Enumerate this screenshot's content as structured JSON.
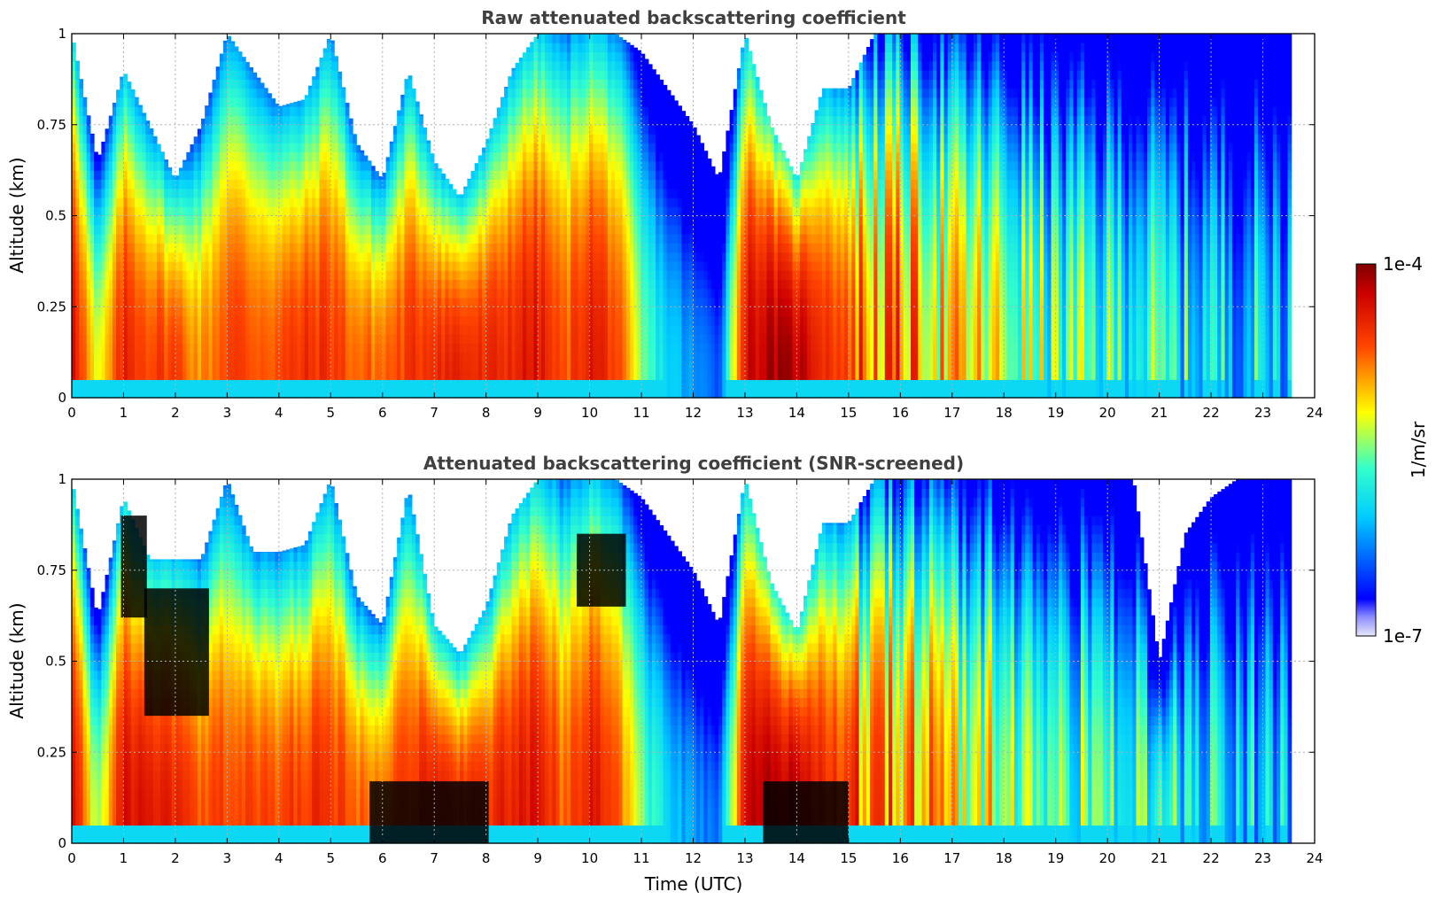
{
  "chart_data": [
    {
      "type": "heatmap",
      "title": "Raw attenuated backscattering coefficient",
      "xlabel": "",
      "ylabel": "Altitude (km)",
      "xlim": [
        0,
        24
      ],
      "ylim": [
        0,
        1
      ],
      "xticks": [
        "0",
        "1",
        "2",
        "3",
        "4",
        "5",
        "6",
        "7",
        "8",
        "9",
        "10",
        "11",
        "12",
        "13",
        "14",
        "15",
        "16",
        "17",
        "18",
        "19",
        "20",
        "21",
        "22",
        "23",
        "24"
      ],
      "yticks": [
        {
          "value": 0,
          "label": "0"
        },
        {
          "value": 0.25,
          "label": "0.25"
        },
        {
          "value": 0.5,
          "label": "0.5"
        },
        {
          "value": 0.75,
          "label": "0.75"
        },
        {
          "value": 1,
          "label": "1"
        }
      ],
      "grid": true,
      "screened": false,
      "data_end_hour": 23.55,
      "profiles": [
        {
          "t": 0.0,
          "top": 1.0,
          "peak": 0.95
        },
        {
          "t": 0.5,
          "top": 0.65,
          "peak": 0.55
        },
        {
          "t": 1.0,
          "top": 0.9,
          "peak": 0.85
        },
        {
          "t": 1.5,
          "top": 0.75,
          "peak": 0.8
        },
        {
          "t": 2.0,
          "top": 0.6,
          "peak": 0.8
        },
        {
          "t": 2.5,
          "top": 0.75,
          "peak": 0.7
        },
        {
          "t": 3.0,
          "top": 1.0,
          "peak": 0.8
        },
        {
          "t": 3.5,
          "top": 0.9,
          "peak": 0.78
        },
        {
          "t": 4.0,
          "top": 0.8,
          "peak": 0.78
        },
        {
          "t": 4.5,
          "top": 0.82,
          "peak": 0.82
        },
        {
          "t": 5.0,
          "top": 1.0,
          "peak": 0.82
        },
        {
          "t": 5.5,
          "top": 0.7,
          "peak": 0.75
        },
        {
          "t": 6.0,
          "top": 0.6,
          "peak": 0.75
        },
        {
          "t": 6.5,
          "top": 0.9,
          "peak": 0.8
        },
        {
          "t": 7.0,
          "top": 0.65,
          "peak": 0.85
        },
        {
          "t": 7.5,
          "top": 0.55,
          "peak": 0.85
        },
        {
          "t": 8.0,
          "top": 0.7,
          "peak": 0.82
        },
        {
          "t": 8.5,
          "top": 0.9,
          "peak": 0.85
        },
        {
          "t": 9.0,
          "top": 1.0,
          "peak": 0.88
        },
        {
          "t": 9.5,
          "top": 1.0,
          "peak": 0.75
        },
        {
          "t": 10.0,
          "top": 1.0,
          "peak": 0.88
        },
        {
          "t": 10.5,
          "top": 1.0,
          "peak": 0.8
        },
        {
          "t": 11.0,
          "top": 0.95,
          "peak": 0.5
        },
        {
          "t": 11.5,
          "top": 0.85,
          "peak": 0.35
        },
        {
          "t": 12.0,
          "top": 0.75,
          "peak": 0.25
        },
        {
          "t": 12.5,
          "top": 0.6,
          "peak": 0.2
        },
        {
          "t": 13.0,
          "top": 1.0,
          "peak": 0.9
        },
        {
          "t": 13.5,
          "top": 0.75,
          "peak": 0.95
        },
        {
          "t": 14.0,
          "top": 0.6,
          "peak": 0.95
        },
        {
          "t": 14.5,
          "top": 0.85,
          "peak": 0.85
        },
        {
          "t": 15.0,
          "top": 0.85,
          "peak": 0.78
        },
        {
          "t": 15.5,
          "top": 1.0,
          "peak": 0.72
        },
        {
          "t": 16.0,
          "top": 1.0,
          "peak": 0.72
        },
        {
          "t": 16.5,
          "top": 1.0,
          "peak": 0.68
        },
        {
          "t": 17.0,
          "top": 1.0,
          "peak": 0.62
        },
        {
          "t": 17.5,
          "top": 1.0,
          "peak": 0.6
        },
        {
          "t": 18.0,
          "top": 1.0,
          "peak": 0.55
        },
        {
          "t": 18.5,
          "top": 1.0,
          "peak": 0.52
        },
        {
          "t": 19.0,
          "top": 1.0,
          "peak": 0.45
        },
        {
          "t": 19.5,
          "top": 1.0,
          "peak": 0.45
        },
        {
          "t": 20.0,
          "top": 1.0,
          "peak": 0.43
        },
        {
          "t": 20.5,
          "top": 1.0,
          "peak": 0.45
        },
        {
          "t": 21.0,
          "top": 1.0,
          "peak": 0.4
        },
        {
          "t": 21.5,
          "top": 1.0,
          "peak": 0.38
        },
        {
          "t": 22.0,
          "top": 1.0,
          "peak": 0.36
        },
        {
          "t": 22.5,
          "top": 1.0,
          "peak": 0.35
        },
        {
          "t": 23.0,
          "top": 1.0,
          "peak": 0.35
        },
        {
          "t": 23.55,
          "top": 1.0,
          "peak": 0.35
        }
      ]
    },
    {
      "type": "heatmap",
      "title": "Attenuated backscattering coefficient (SNR-screened)",
      "xlabel": "Time (UTC)",
      "ylabel": "Altitude (km)",
      "xlim": [
        0,
        24
      ],
      "ylim": [
        0,
        1
      ],
      "xticks": [
        "0",
        "1",
        "2",
        "3",
        "4",
        "5",
        "6",
        "7",
        "8",
        "9",
        "10",
        "11",
        "12",
        "13",
        "14",
        "15",
        "16",
        "17",
        "18",
        "19",
        "20",
        "21",
        "22",
        "23",
        "24"
      ],
      "yticks": [
        {
          "value": 0,
          "label": "0"
        },
        {
          "value": 0.25,
          "label": "0.25"
        },
        {
          "value": 0.5,
          "label": "0.5"
        },
        {
          "value": 0.75,
          "label": "0.75"
        },
        {
          "value": 1,
          "label": "1"
        }
      ],
      "grid": true,
      "screened": true,
      "data_end_hour": 23.55,
      "profiles": [
        {
          "t": 0.0,
          "top": 1.0,
          "peak": 0.95
        },
        {
          "t": 0.5,
          "top": 0.62,
          "peak": 0.5
        },
        {
          "t": 1.0,
          "top": 0.95,
          "peak": 0.9
        },
        {
          "t": 1.5,
          "top": 0.78,
          "peak": 0.85
        },
        {
          "t": 2.0,
          "top": 0.78,
          "peak": 0.85
        },
        {
          "t": 2.5,
          "top": 0.78,
          "peak": 0.75
        },
        {
          "t": 3.0,
          "top": 1.0,
          "peak": 0.8
        },
        {
          "t": 3.5,
          "top": 0.8,
          "peak": 0.78
        },
        {
          "t": 4.0,
          "top": 0.8,
          "peak": 0.78
        },
        {
          "t": 4.5,
          "top": 0.82,
          "peak": 0.82
        },
        {
          "t": 5.0,
          "top": 1.0,
          "peak": 0.82
        },
        {
          "t": 5.5,
          "top": 0.68,
          "peak": 0.75
        },
        {
          "t": 6.0,
          "top": 0.6,
          "peak": 0.78
        },
        {
          "t": 6.5,
          "top": 0.98,
          "peak": 0.82
        },
        {
          "t": 7.0,
          "top": 0.6,
          "peak": 0.85
        },
        {
          "t": 7.5,
          "top": 0.52,
          "peak": 0.85
        },
        {
          "t": 8.0,
          "top": 0.65,
          "peak": 0.82
        },
        {
          "t": 8.5,
          "top": 0.9,
          "peak": 0.85
        },
        {
          "t": 9.0,
          "top": 1.0,
          "peak": 0.88
        },
        {
          "t": 9.5,
          "top": 1.0,
          "peak": 0.75
        },
        {
          "t": 10.0,
          "top": 1.0,
          "peak": 0.88
        },
        {
          "t": 10.5,
          "top": 1.0,
          "peak": 0.8
        },
        {
          "t": 11.0,
          "top": 0.95,
          "peak": 0.5
        },
        {
          "t": 11.5,
          "top": 0.85,
          "peak": 0.35
        },
        {
          "t": 12.0,
          "top": 0.75,
          "peak": 0.25
        },
        {
          "t": 12.5,
          "top": 0.6,
          "peak": 0.2
        },
        {
          "t": 13.0,
          "top": 1.0,
          "peak": 0.9
        },
        {
          "t": 13.5,
          "top": 0.72,
          "peak": 0.95
        },
        {
          "t": 14.0,
          "top": 0.58,
          "peak": 0.95
        },
        {
          "t": 14.5,
          "top": 0.88,
          "peak": 0.85
        },
        {
          "t": 15.0,
          "top": 0.88,
          "peak": 0.78
        },
        {
          "t": 15.5,
          "top": 1.0,
          "peak": 0.72
        },
        {
          "t": 16.0,
          "top": 1.0,
          "peak": 0.72
        },
        {
          "t": 16.5,
          "top": 1.0,
          "peak": 0.68
        },
        {
          "t": 17.0,
          "top": 1.0,
          "peak": 0.62
        },
        {
          "t": 17.5,
          "top": 1.0,
          "peak": 0.6
        },
        {
          "t": 18.0,
          "top": 1.0,
          "peak": 0.55
        },
        {
          "t": 18.5,
          "top": 1.0,
          "peak": 0.52
        },
        {
          "t": 19.0,
          "top": 1.0,
          "peak": 0.45
        },
        {
          "t": 19.5,
          "top": 1.0,
          "peak": 0.45
        },
        {
          "t": 20.0,
          "top": 1.0,
          "peak": 0.43
        },
        {
          "t": 20.5,
          "top": 1.0,
          "peak": 0.45
        },
        {
          "t": 21.0,
          "top": 0.5,
          "peak": 0.4
        },
        {
          "t": 21.5,
          "top": 0.85,
          "peak": 0.38
        },
        {
          "t": 22.0,
          "top": 0.95,
          "peak": 0.36
        },
        {
          "t": 22.5,
          "top": 1.0,
          "peak": 0.35
        },
        {
          "t": 23.0,
          "top": 1.0,
          "peak": 0.35
        },
        {
          "t": 23.55,
          "top": 1.0,
          "peak": 0.35
        }
      ],
      "saturated_regions": [
        {
          "t0": 0.95,
          "t1": 1.45,
          "z0": 0.62,
          "z1": 0.9
        },
        {
          "t0": 1.4,
          "t1": 2.65,
          "z0": 0.35,
          "z1": 0.7
        },
        {
          "t0": 9.75,
          "t1": 10.7,
          "z0": 0.65,
          "z1": 0.85
        },
        {
          "t0": 5.75,
          "t1": 8.05,
          "z0": 0.0,
          "z1": 0.17
        },
        {
          "t0": 13.35,
          "t1": 15.0,
          "z0": 0.0,
          "z1": 0.17
        }
      ]
    }
  ],
  "colorbar": {
    "min_label": "1e-7",
    "max_label": "1e-4",
    "unit": "1/m/sr",
    "colormap": "jet"
  }
}
